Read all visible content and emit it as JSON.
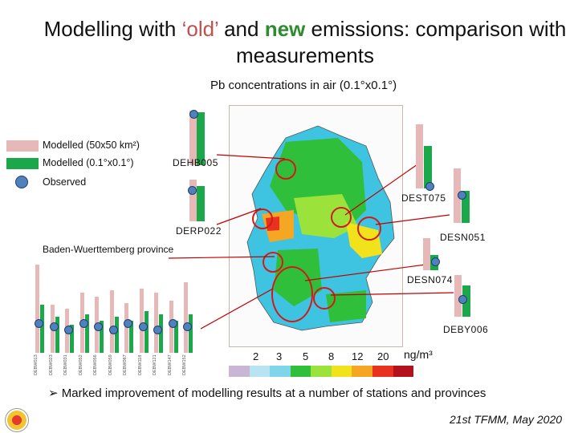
{
  "slide": {
    "title_prefix": "Modelling with ",
    "title_old": "‘old’",
    "title_mid": " and ",
    "title_new": "new",
    "title_suffix": " emissions: comparison with measurements",
    "subtitle": "Pb concentrations in air (0.1°x0.1°)"
  },
  "legend": {
    "modelled_coarse": "Modelled (50x50 km²)",
    "modelled_fine": "Modelled (0.1°x0.1°)",
    "observed": "Observed",
    "colors": {
      "coarse": "#e6b9b8",
      "fine": "#1aa84a",
      "observed": "#4f81bd"
    }
  },
  "stations": {
    "DEHB005": "DEHB005",
    "DEST075": "DEST075",
    "DERP022": "DERP022",
    "DESN051": "DESN051",
    "DESN074": "DESN074",
    "DEBY006": "DEBY006"
  },
  "province_label": "Baden-Wuerttemberg province",
  "baden_wuerttemberg_stations": [
    "DEBW013",
    "DEBW023",
    "DEBW031",
    "DEBW052",
    "DEBW056",
    "DEBW059",
    "DEBW087",
    "DEBW118",
    "DEBW121",
    "DEBW147",
    "DEBW152"
  ],
  "scale": {
    "ticks": [
      "2",
      "3",
      "5",
      "8",
      "12",
      "20"
    ],
    "unit": "ng/m³",
    "colors": [
      "#c9b6d6",
      "#b7e3f3",
      "#7fd6ea",
      "#2fbf3a",
      "#9be33a",
      "#f2e21b",
      "#f5a623",
      "#e8311e",
      "#b3121c"
    ]
  },
  "bullet": "Marked improvement of modelling results at a number of stations and provinces",
  "footer": "21st TFMM, May 2020"
}
